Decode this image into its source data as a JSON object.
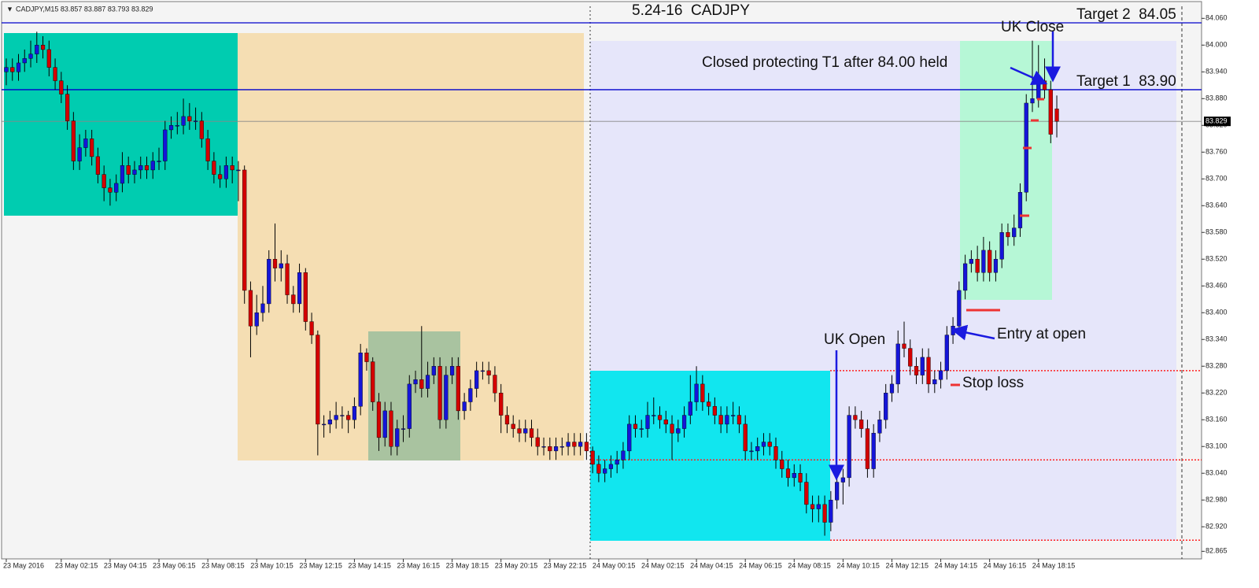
{
  "header": "CADJPY,M15 83.857 83.887 83.793 83.829",
  "chart_data": {
    "type": "candlestick",
    "title": "5.24-16  CADJPY",
    "colors": {
      "up": "#1515d8",
      "down": "#d40000",
      "wick": "#000000"
    },
    "open": [
      83.94,
      83.95,
      83.94,
      83.96,
      83.97,
      83.98,
      84.0,
      83.99,
      83.95,
      83.92,
      83.89,
      83.83,
      83.74,
      83.77,
      83.79,
      83.75,
      83.71,
      83.68,
      83.67,
      83.69,
      83.73,
      83.71,
      83.72,
      83.73,
      83.72,
      83.74,
      83.74,
      83.81,
      83.82,
      83.82,
      83.84,
      83.83,
      83.83,
      83.79,
      83.74,
      83.71,
      83.7,
      83.73,
      83.72,
      83.72,
      83.45,
      83.37,
      83.4,
      83.42,
      83.52,
      83.5,
      83.51,
      83.44,
      83.42,
      83.49,
      83.38,
      83.35,
      83.15,
      83.15,
      83.16,
      83.17,
      83.17,
      83.16,
      83.19,
      83.31,
      83.29,
      83.2,
      83.12,
      83.18,
      83.1,
      83.14,
      83.14,
      83.24,
      83.25,
      83.23,
      83.26,
      83.28,
      83.16,
      83.26,
      83.28,
      83.18,
      83.2,
      83.23,
      83.27,
      83.27,
      83.26,
      83.22,
      83.17,
      83.15,
      83.14,
      83.13,
      83.14,
      83.12,
      83.1,
      83.1,
      83.09,
      83.1,
      83.1,
      83.11,
      83.1,
      83.11,
      83.09,
      83.06,
      83.04,
      83.05,
      83.06,
      83.07,
      83.09,
      83.15,
      83.14,
      83.14,
      83.17,
      83.17,
      83.16,
      83.15,
      83.13,
      83.14,
      83.17,
      83.2,
      83.24,
      83.2,
      83.19,
      83.17,
      83.15,
      83.17,
      83.17,
      83.15,
      83.09,
      83.09,
      83.1,
      83.11,
      83.1,
      83.07,
      83.05,
      83.03,
      83.04,
      83.02,
      82.97,
      82.96,
      82.97,
      82.93,
      82.98,
      83.02,
      83.03,
      83.17,
      83.16,
      83.14,
      83.05,
      83.13,
      83.16,
      83.22,
      83.24,
      83.33,
      83.32,
      83.28,
      83.26,
      83.3,
      83.24,
      83.25,
      83.27,
      83.35,
      83.37,
      83.45,
      83.51,
      83.52,
      83.49,
      83.54,
      83.49,
      83.52,
      83.58,
      83.57,
      83.59,
      83.67,
      83.87,
      83.88,
      83.92,
      83.9,
      83.857
    ],
    "high": [
      83.97,
      83.97,
      83.98,
      83.99,
      84.01,
      84.03,
      84.02,
      84.01,
      83.97,
      83.94,
      83.91,
      83.85,
      83.8,
      83.81,
      83.81,
      83.77,
      83.73,
      83.7,
      83.71,
      83.76,
      83.75,
      83.74,
      83.75,
      83.75,
      83.76,
      83.77,
      83.83,
      83.84,
      83.85,
      83.88,
      83.87,
      83.86,
      83.85,
      83.81,
      83.76,
      83.73,
      83.75,
      83.75,
      83.74,
      83.73,
      83.47,
      83.44,
      83.46,
      83.54,
      83.6,
      83.54,
      83.53,
      83.46,
      83.51,
      83.5,
      83.4,
      83.36,
      83.17,
      83.18,
      83.2,
      83.19,
      83.18,
      83.21,
      83.33,
      83.32,
      83.3,
      83.22,
      83.2,
      83.2,
      83.16,
      83.17,
      83.26,
      83.27,
      83.37,
      83.29,
      83.3,
      83.3,
      83.28,
      83.3,
      83.3,
      83.22,
      83.25,
      83.29,
      83.29,
      83.29,
      83.28,
      83.24,
      83.19,
      83.17,
      83.16,
      83.16,
      83.16,
      83.14,
      83.12,
      83.12,
      83.12,
      83.12,
      83.13,
      83.13,
      83.13,
      83.13,
      83.1,
      83.08,
      83.07,
      83.08,
      83.09,
      83.11,
      83.17,
      83.17,
      83.16,
      83.2,
      83.21,
      83.19,
      83.18,
      83.17,
      83.16,
      83.19,
      83.26,
      83.28,
      83.26,
      83.22,
      83.21,
      83.19,
      83.19,
      83.2,
      83.19,
      83.17,
      83.11,
      83.12,
      83.13,
      83.13,
      83.12,
      83.09,
      83.07,
      83.06,
      83.06,
      83.04,
      82.99,
      82.99,
      82.99,
      83.0,
      83.04,
      83.05,
      83.19,
      83.19,
      83.18,
      83.16,
      83.15,
      83.18,
      83.24,
      83.26,
      83.36,
      83.38,
      83.34,
      83.3,
      83.32,
      83.32,
      83.27,
      83.29,
      83.37,
      83.39,
      83.47,
      83.53,
      83.54,
      83.55,
      83.57,
      83.56,
      83.54,
      83.6,
      83.6,
      83.62,
      83.69,
      83.89,
      84.01,
      84.0,
      83.97,
      83.92,
      83.887
    ],
    "low": [
      83.91,
      83.92,
      83.92,
      83.94,
      83.95,
      83.96,
      83.97,
      83.93,
      83.9,
      83.87,
      83.81,
      83.72,
      83.72,
      83.75,
      83.73,
      83.69,
      83.65,
      83.64,
      83.65,
      83.67,
      83.69,
      83.69,
      83.7,
      83.7,
      83.7,
      83.72,
      83.72,
      83.79,
      83.8,
      83.8,
      83.81,
      83.81,
      83.77,
      83.72,
      83.69,
      83.68,
      83.68,
      83.69,
      83.65,
      83.42,
      83.3,
      83.35,
      83.38,
      83.4,
      83.47,
      83.47,
      83.42,
      83.4,
      83.4,
      83.36,
      83.33,
      83.08,
      83.12,
      83.13,
      83.14,
      83.14,
      83.13,
      83.14,
      83.17,
      83.27,
      83.18,
      83.09,
      83.1,
      83.08,
      83.08,
      83.11,
      83.12,
      83.22,
      83.21,
      83.21,
      83.24,
      83.14,
      83.14,
      83.24,
      83.16,
      83.16,
      83.18,
      83.21,
      83.25,
      83.24,
      83.2,
      83.13,
      83.13,
      83.12,
      83.11,
      83.11,
      83.1,
      83.08,
      83.08,
      83.07,
      83.07,
      83.08,
      83.08,
      83.08,
      83.08,
      83.07,
      83.04,
      83.02,
      83.02,
      83.03,
      83.04,
      83.05,
      83.07,
      83.12,
      83.12,
      83.12,
      83.15,
      83.14,
      83.13,
      83.07,
      83.11,
      83.12,
      83.15,
      83.18,
      83.18,
      83.17,
      83.15,
      83.13,
      83.13,
      83.15,
      83.13,
      83.07,
      83.07,
      83.07,
      83.08,
      83.08,
      83.05,
      83.03,
      83.01,
      83.01,
      83.0,
      82.95,
      82.93,
      82.93,
      82.9,
      82.91,
      82.96,
      82.97,
      83.01,
      83.14,
      83.12,
      83.03,
      83.03,
      83.11,
      83.14,
      83.2,
      83.22,
      83.3,
      83.26,
      83.24,
      83.24,
      83.22,
      83.22,
      83.23,
      83.25,
      83.33,
      83.35,
      83.43,
      83.49,
      83.47,
      83.47,
      83.47,
      83.47,
      83.5,
      83.55,
      83.55,
      83.57,
      83.65,
      83.85,
      83.86,
      83.88,
      83.78,
      83.793
    ],
    "close": [
      83.95,
      83.94,
      83.96,
      83.97,
      83.98,
      84.0,
      83.99,
      83.95,
      83.92,
      83.89,
      83.83,
      83.74,
      83.77,
      83.79,
      83.75,
      83.71,
      83.68,
      83.67,
      83.69,
      83.73,
      83.71,
      83.72,
      83.73,
      83.72,
      83.74,
      83.74,
      83.81,
      83.82,
      83.82,
      83.84,
      83.83,
      83.83,
      83.79,
      83.74,
      83.71,
      83.7,
      83.73,
      83.72,
      83.72,
      83.45,
      83.37,
      83.4,
      83.42,
      83.52,
      83.5,
      83.51,
      83.44,
      83.42,
      83.49,
      83.38,
      83.35,
      83.15,
      83.15,
      83.16,
      83.17,
      83.17,
      83.16,
      83.19,
      83.31,
      83.29,
      83.2,
      83.12,
      83.18,
      83.1,
      83.14,
      83.14,
      83.24,
      83.25,
      83.23,
      83.26,
      83.28,
      83.16,
      83.26,
      83.28,
      83.18,
      83.2,
      83.23,
      83.27,
      83.27,
      83.26,
      83.22,
      83.17,
      83.15,
      83.14,
      83.13,
      83.14,
      83.12,
      83.1,
      83.1,
      83.09,
      83.1,
      83.1,
      83.11,
      83.1,
      83.11,
      83.09,
      83.06,
      83.04,
      83.05,
      83.06,
      83.07,
      83.09,
      83.15,
      83.14,
      83.14,
      83.17,
      83.17,
      83.16,
      83.15,
      83.13,
      83.14,
      83.17,
      83.2,
      83.24,
      83.2,
      83.19,
      83.17,
      83.15,
      83.17,
      83.17,
      83.15,
      83.09,
      83.09,
      83.1,
      83.11,
      83.1,
      83.07,
      83.05,
      83.03,
      83.04,
      83.02,
      82.97,
      82.96,
      82.97,
      82.93,
      82.98,
      83.02,
      83.03,
      83.17,
      83.16,
      83.14,
      83.05,
      83.13,
      83.16,
      83.22,
      83.24,
      83.33,
      83.32,
      83.28,
      83.26,
      83.3,
      83.24,
      83.25,
      83.27,
      83.35,
      83.37,
      83.45,
      83.51,
      83.52,
      83.49,
      83.54,
      83.49,
      83.52,
      83.58,
      83.57,
      83.59,
      83.67,
      83.87,
      83.88,
      83.92,
      83.9,
      83.8,
      83.829
    ],
    "xlim": [
      -0.77,
      195.7
    ],
    "ylim": [
      82.848,
      84.087
    ],
    "xticks": [
      {
        "value": 0,
        "label": "23 May 2016"
      },
      {
        "value": 9,
        "label": "23 May 02:15"
      },
      {
        "value": 17,
        "label": "23 May 04:15"
      },
      {
        "value": 25,
        "label": "23 May 06:15"
      },
      {
        "value": 33,
        "label": "23 May 08:15"
      },
      {
        "value": 41,
        "label": "23 May 10:15"
      },
      {
        "value": 49,
        "label": "23 May 12:15"
      },
      {
        "value": 57,
        "label": "23 May 14:15"
      },
      {
        "value": 65,
        "label": "23 May 16:15"
      },
      {
        "value": 73,
        "label": "23 May 18:15"
      },
      {
        "value": 81,
        "label": "23 May 20:15"
      },
      {
        "value": 89,
        "label": "23 May 22:15"
      },
      {
        "value": 97,
        "label": "24 May 00:15"
      },
      {
        "value": 105,
        "label": "24 May 02:15"
      },
      {
        "value": 113,
        "label": "24 May 04:15"
      },
      {
        "value": 121,
        "label": "24 May 06:15"
      },
      {
        "value": 129,
        "label": "24 May 08:15"
      },
      {
        "value": 137,
        "label": "24 May 10:15"
      },
      {
        "value": 145,
        "label": "24 May 12:15"
      },
      {
        "value": 153,
        "label": "24 May 14:15"
      },
      {
        "value": 161,
        "label": "24 May 16:15"
      },
      {
        "value": 169,
        "label": "24 May 18:15"
      }
    ],
    "yticks": [
      {
        "value": 84.06,
        "label": "84.060"
      },
      {
        "value": 84,
        "label": "84.000"
      },
      {
        "value": 83.94,
        "label": "83.940"
      },
      {
        "value": 83.88,
        "label": "83.880"
      },
      {
        "value": 83.82,
        "label": "83.820"
      },
      {
        "value": 83.76,
        "label": "83.760"
      },
      {
        "value": 83.7,
        "label": "83.700"
      },
      {
        "value": 83.64,
        "label": "83.640"
      },
      {
        "value": 83.58,
        "label": "83.580"
      },
      {
        "value": 83.52,
        "label": "83.520"
      },
      {
        "value": 83.46,
        "label": "83.460"
      },
      {
        "value": 83.4,
        "label": "83.400"
      },
      {
        "value": 83.34,
        "label": "83.340"
      },
      {
        "value": 83.28,
        "label": "83.280"
      },
      {
        "value": 83.22,
        "label": "83.220"
      },
      {
        "value": 83.16,
        "label": "83.160"
      },
      {
        "value": 83.1,
        "label": "83.100"
      },
      {
        "value": 83.04,
        "label": "83.040"
      },
      {
        "value": 82.98,
        "label": "82.980"
      },
      {
        "value": 82.92,
        "label": "82.920"
      },
      {
        "value": 82.865,
        "label": "82.865"
      }
    ],
    "levels": [
      {
        "value": 84.05,
        "color": "#0000cc",
        "label": "Target 2  84.05"
      },
      {
        "value": 83.9,
        "color": "#0000cc",
        "label": "Target 1  83.90"
      },
      {
        "value": 83.27,
        "color": "#ff2020"
      },
      {
        "value": 83.07,
        "color": "#ff2020"
      },
      {
        "value": 82.89,
        "color": "#ff2020"
      }
    ],
    "last_price": {
      "value": 83.829,
      "label": "83.829"
    },
    "annotations": [
      "UK Close",
      "Closed protecting T1 after 84.00 held",
      "UK Open",
      "Entry at open",
      "Stop loss"
    ]
  }
}
